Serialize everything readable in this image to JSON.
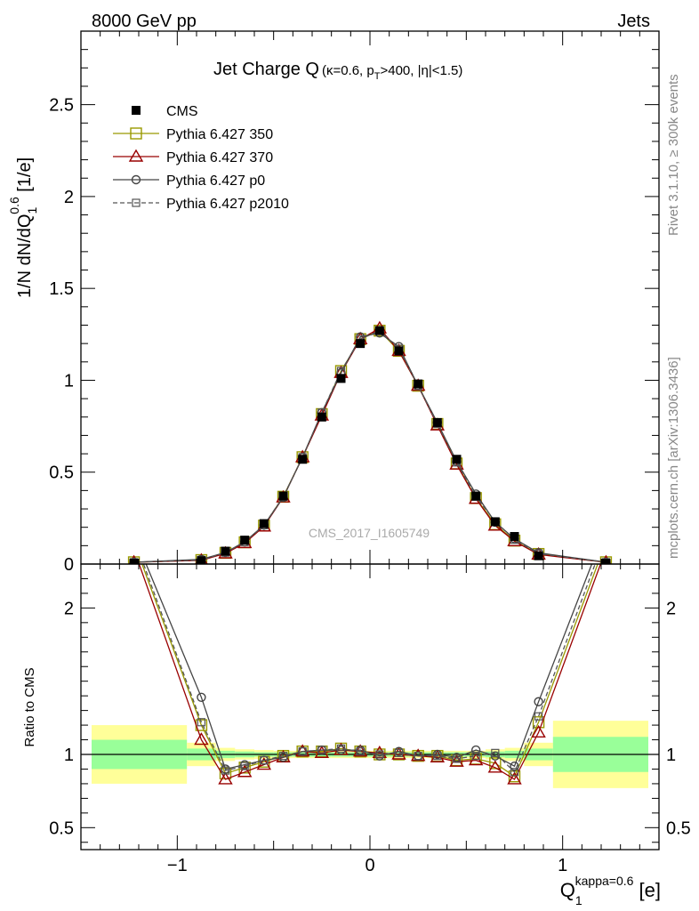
{
  "header": {
    "left": "8000 GeV pp",
    "right": "Jets"
  },
  "title": {
    "main": "Jet Charge Q",
    "sub_prefix": "(κ=0.6, p",
    "sub_sub": "T",
    "sub_suffix": ">400, |η|<1.5)"
  },
  "side_labels": {
    "rivet": "Rivet 3.1.10, ≥ 300k events",
    "mcplots": "mcplots.cern.ch [arXiv:1306.3436]"
  },
  "watermark": "CMS_2017_I1605749",
  "axes": {
    "ylabel_main": {
      "pre": "1/N dN/dQ",
      "sub": "1",
      "sup": "0.6",
      "post": " [1/e]"
    },
    "ylabel_ratio": "Ratio to CMS",
    "xlabel": {
      "pre": "Q",
      "sub": "1",
      "sup": "kappa=0.6",
      "post": " [e]"
    },
    "main_yticks": [
      "0",
      "0.5",
      "1",
      "1.5",
      "2",
      "2.5"
    ],
    "ratio_yticks": [
      "0.5",
      "1",
      "2"
    ],
    "xticks": [
      "−1",
      "0",
      "1"
    ]
  },
  "legend": [
    {
      "label": "CMS",
      "color": "#000000",
      "marker": "filled-square",
      "line": "none"
    },
    {
      "label": "Pythia 6.427 350",
      "color": "#999900",
      "marker": "open-square",
      "line": "solid"
    },
    {
      "label": "Pythia 6.427 370",
      "color": "#990000",
      "marker": "open-triangle",
      "line": "solid"
    },
    {
      "label": "Pythia 6.427 p0",
      "color": "#444444",
      "marker": "open-circle",
      "line": "solid"
    },
    {
      "label": "Pythia 6.427 p2010",
      "color": "#555555",
      "marker": "open-square-small",
      "line": "dashed"
    }
  ],
  "chart_data": {
    "type": "line",
    "x_range": [
      -1.5,
      1.5
    ],
    "main_ylim": [
      0,
      2.9
    ],
    "ratio_ylim": [
      0.35,
      2.3
    ],
    "x_bin_edges": [
      -1.5,
      -0.95,
      -0.8,
      -0.7,
      -0.6,
      -0.5,
      -0.4,
      -0.3,
      -0.2,
      -0.1,
      0.0,
      0.1,
      0.2,
      0.3,
      0.4,
      0.5,
      0.6,
      0.7,
      0.8,
      0.95,
      1.5
    ],
    "x": [
      -1.225,
      -0.875,
      -0.75,
      -0.65,
      -0.55,
      -0.45,
      -0.35,
      -0.25,
      -0.15,
      -0.05,
      0.05,
      0.15,
      0.25,
      0.35,
      0.45,
      0.55,
      0.65,
      0.75,
      0.875,
      1.225
    ],
    "data": [
      0.004,
      0.018,
      0.07,
      0.13,
      0.22,
      0.37,
      0.57,
      0.8,
      1.01,
      1.2,
      1.27,
      1.16,
      0.98,
      0.77,
      0.57,
      0.37,
      0.23,
      0.15,
      0.045,
      0.004
    ],
    "band_inner": [
      0.1,
      0.04,
      0.025,
      0.02,
      0.015,
      0.015,
      0.015,
      0.015,
      0.015,
      0.015,
      0.015,
      0.015,
      0.015,
      0.015,
      0.015,
      0.015,
      0.02,
      0.025,
      0.04,
      0.12
    ],
    "band_outer": [
      0.2,
      0.08,
      0.045,
      0.035,
      0.03,
      0.025,
      0.025,
      0.025,
      0.025,
      0.025,
      0.025,
      0.025,
      0.025,
      0.025,
      0.025,
      0.025,
      0.035,
      0.045,
      0.08,
      0.23
    ],
    "series": [
      {
        "name": "Pythia 6.427 350",
        "ratio": [
          2.45,
          1.2,
          0.87,
          0.91,
          0.95,
          0.99,
          1.02,
          1.02,
          1.04,
          1.02,
          1.0,
          1.0,
          0.99,
          0.99,
          0.96,
          0.97,
          0.94,
          0.85,
          1.22,
          2.45
        ]
      },
      {
        "name": "Pythia 6.427 370",
        "ratio": [
          2.4,
          1.1,
          0.83,
          0.88,
          0.93,
          0.98,
          1.02,
          1.01,
          1.03,
          1.02,
          1.01,
          1.0,
          0.99,
          0.98,
          0.95,
          0.96,
          0.91,
          0.83,
          1.15,
          2.4
        ]
      },
      {
        "name": "Pythia 6.427 p0",
        "ratio": [
          2.5,
          1.39,
          0.9,
          0.93,
          0.96,
          0.98,
          1.02,
          1.03,
          1.03,
          1.03,
          0.99,
          1.02,
          0.99,
          1.0,
          0.98,
          1.03,
          0.99,
          0.92,
          1.36,
          2.55
        ]
      },
      {
        "name": "Pythia 6.427 p2010",
        "ratio": [
          2.48,
          1.22,
          0.89,
          0.92,
          0.96,
          0.99,
          1.02,
          1.03,
          1.04,
          1.02,
          1.0,
          1.01,
          0.99,
          0.99,
          0.97,
          0.99,
          1.01,
          0.88,
          1.26,
          2.5
        ]
      }
    ]
  }
}
